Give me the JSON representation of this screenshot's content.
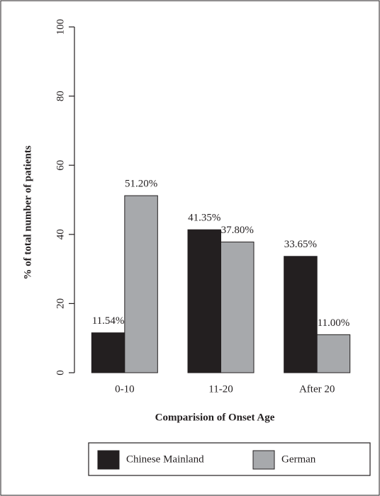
{
  "chart_data": {
    "type": "bar",
    "x_label": "Comparision of Onset Age",
    "y_label": "% of total number of patients",
    "categories": [
      "0-10",
      "11-20",
      "After 20"
    ],
    "series": [
      {
        "name": "Chinese Mainland",
        "color": "#231f20",
        "values": [
          11.54,
          41.35,
          33.65
        ],
        "value_labels": [
          "11.54%",
          "41.35%",
          "33.65%"
        ]
      },
      {
        "name": "German",
        "color": "#a7a9ac",
        "values": [
          51.2,
          37.8,
          11.0
        ],
        "value_labels": [
          "51.20%",
          "37.80%",
          "11.00%"
        ]
      }
    ],
    "ylim": [
      0,
      100
    ],
    "yticks": [
      0,
      20,
      40,
      60,
      80,
      100
    ],
    "grid": false
  }
}
